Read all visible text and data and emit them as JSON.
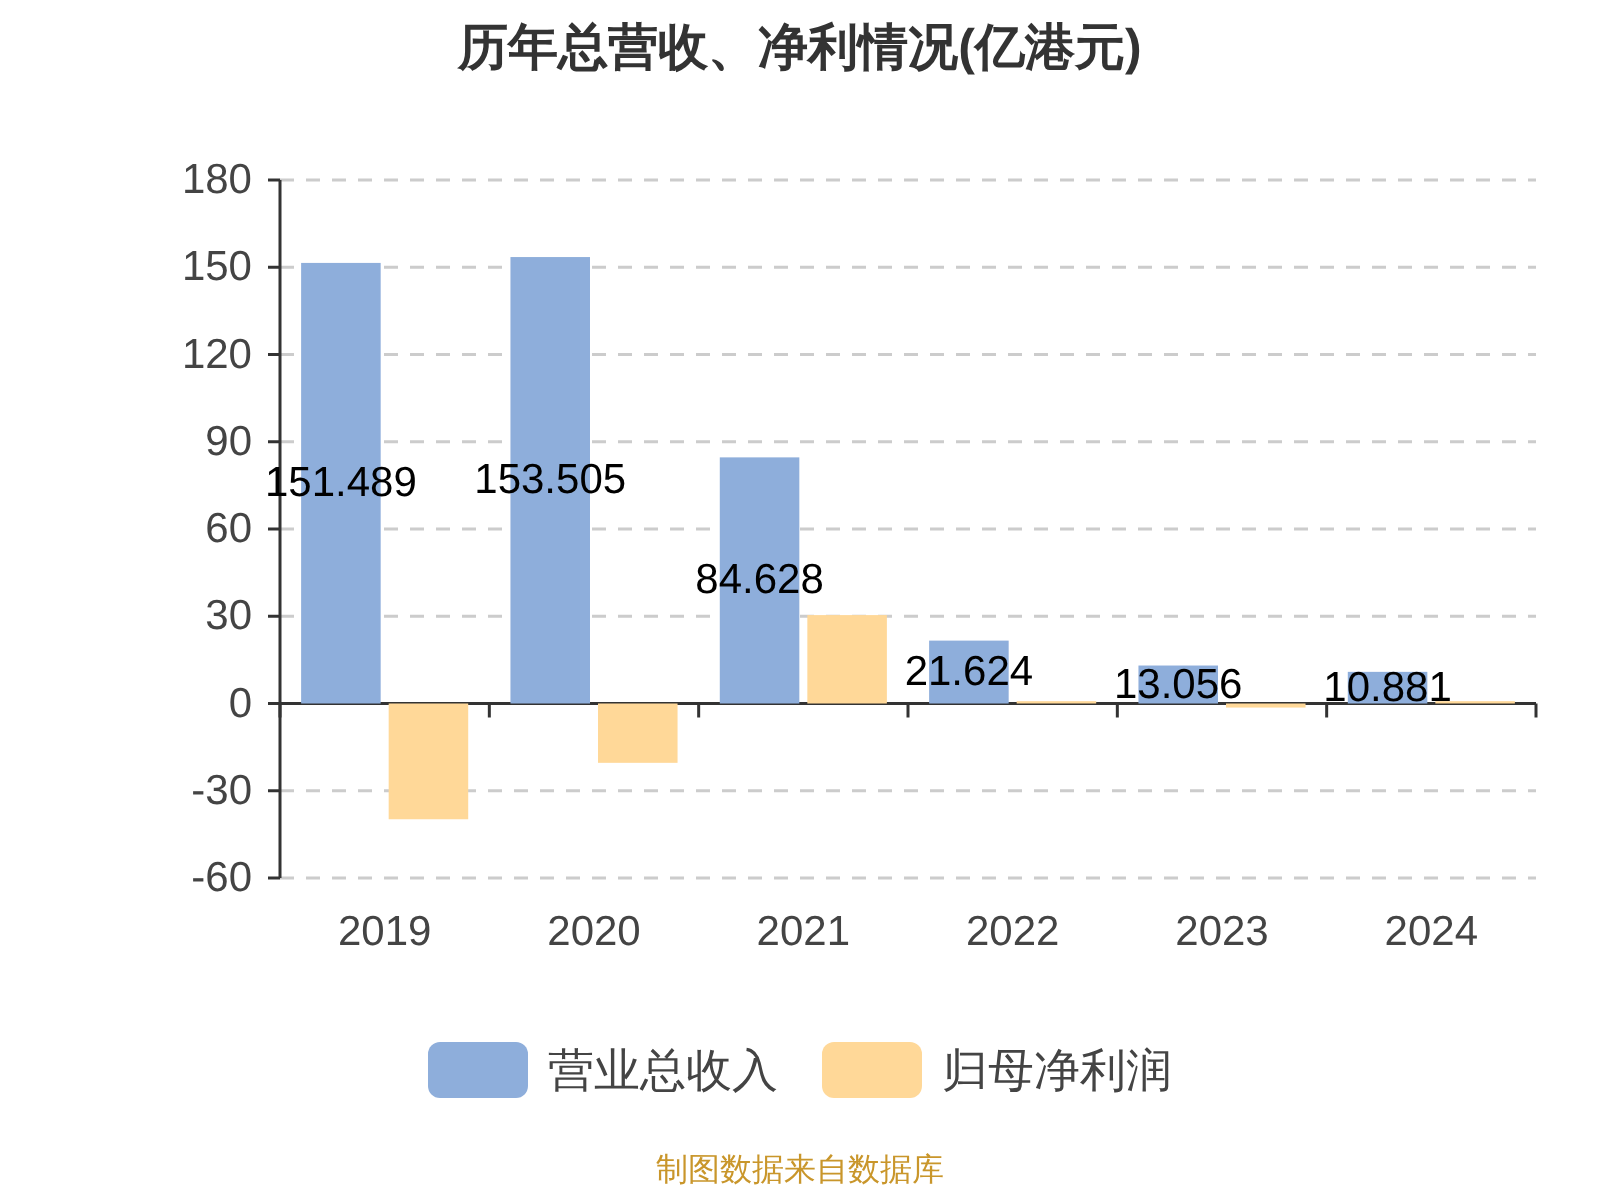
{
  "chart_data": {
    "type": "bar",
    "title": "历年总营收、净利情况(亿港元)",
    "categories": [
      "2019",
      "2020",
      "2021",
      "2022",
      "2023",
      "2024"
    ],
    "series": [
      {
        "name": "营业总收入",
        "color": "#8eaedb",
        "values": [
          151.489,
          153.505,
          84.628,
          21.624,
          13.056,
          10.881
        ],
        "value_labels": [
          "151.489",
          "153.505",
          "84.628",
          "21.624",
          "13.056",
          "10.881"
        ]
      },
      {
        "name": "归母净利润",
        "color": "#ffd898",
        "values": [
          -39.8,
          -20.4,
          30.4,
          0.8,
          -1.4,
          0.8
        ]
      }
    ],
    "ylim": [
      -60,
      180
    ],
    "yticks": [
      -60,
      -30,
      0,
      30,
      60,
      90,
      120,
      150,
      180
    ],
    "grid": "y",
    "legend": "bottom",
    "annotations": [
      "制图数据来自数据库"
    ]
  }
}
